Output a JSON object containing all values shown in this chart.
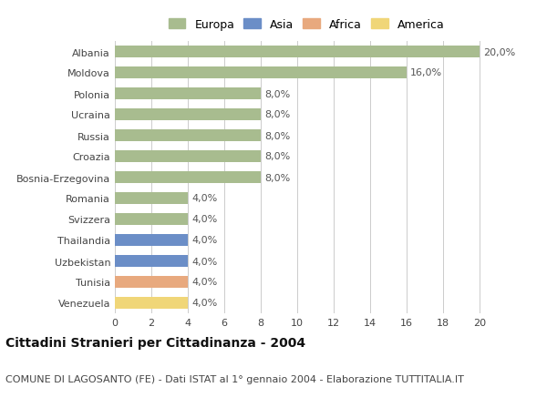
{
  "categories": [
    "Albania",
    "Moldova",
    "Polonia",
    "Ucraina",
    "Russia",
    "Croazia",
    "Bosnia-Erzegovina",
    "Romania",
    "Svizzera",
    "Thailandia",
    "Uzbekistan",
    "Tunisia",
    "Venezuela"
  ],
  "values": [
    20.0,
    16.0,
    8.0,
    8.0,
    8.0,
    8.0,
    8.0,
    4.0,
    4.0,
    4.0,
    4.0,
    4.0,
    4.0
  ],
  "continents": [
    "Europa",
    "Europa",
    "Europa",
    "Europa",
    "Europa",
    "Europa",
    "Europa",
    "Europa",
    "Europa",
    "Asia",
    "Asia",
    "Africa",
    "America"
  ],
  "colors": {
    "Europa": "#a8bc8f",
    "Asia": "#6b8ec7",
    "Africa": "#e8a97e",
    "America": "#f0d678"
  },
  "legend_order": [
    "Europa",
    "Asia",
    "Africa",
    "America"
  ],
  "title": "Cittadini Stranieri per Cittadinanza - 2004",
  "subtitle": "COMUNE DI LAGOSANTO (FE) - Dati ISTAT al 1° gennaio 2004 - Elaborazione TUTTITALIA.IT",
  "xlim": [
    0,
    21
  ],
  "xticks": [
    0,
    2,
    4,
    6,
    8,
    10,
    12,
    14,
    16,
    18,
    20
  ],
  "background_color": "#ffffff",
  "bar_height": 0.55,
  "grid_color": "#cccccc",
  "label_fontsize": 8,
  "title_fontsize": 10,
  "subtitle_fontsize": 8,
  "tick_fontsize": 8,
  "legend_fontsize": 9
}
